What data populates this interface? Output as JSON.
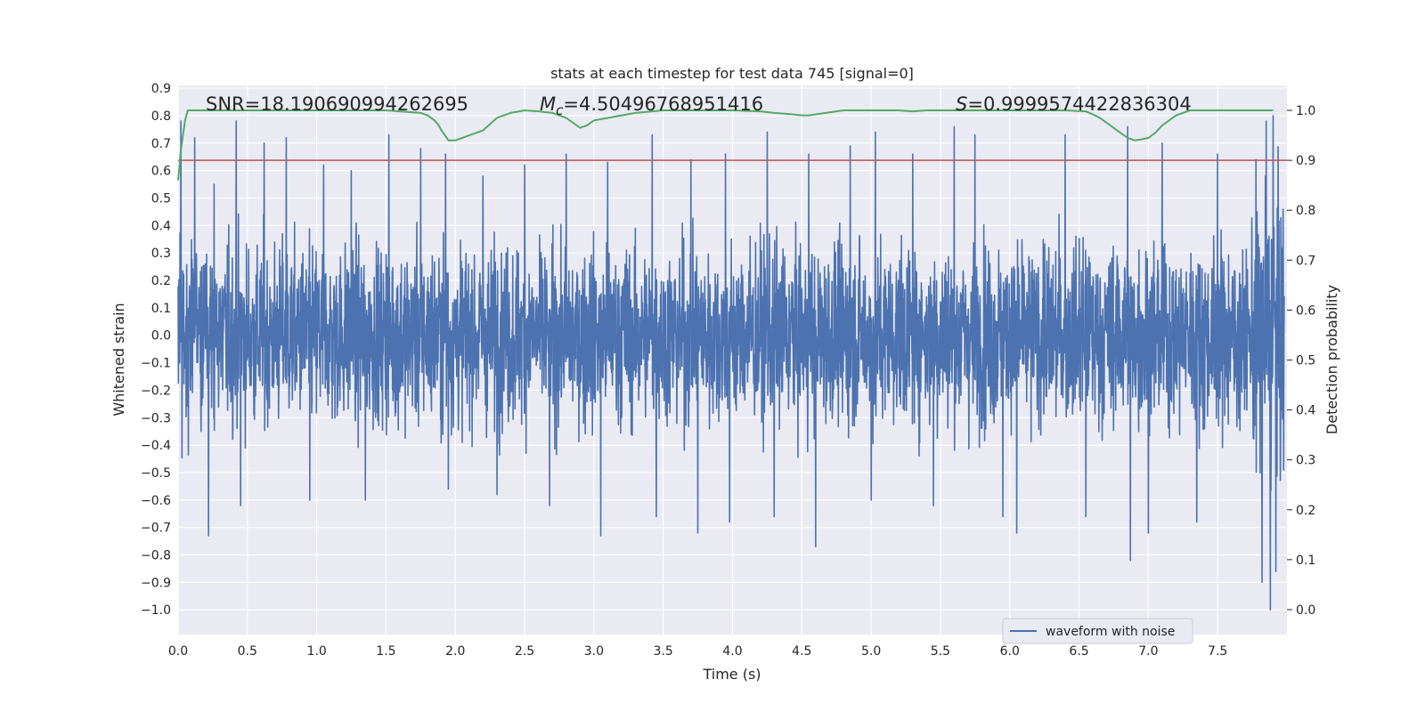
{
  "chart_data": {
    "type": "line",
    "title": "stats at each timestep for test data 745 [signal=0]",
    "xlabel": "Time (s)",
    "ylabel": "Whitened strain",
    "y2label": "Detection probability",
    "xlim": [
      0.0,
      8.0
    ],
    "ylim": [
      -1.09,
      0.91
    ],
    "y2lim": [
      -0.05,
      1.05
    ],
    "xticks": [
      "0.0",
      "0.5",
      "1.0",
      "1.5",
      "2.0",
      "2.5",
      "3.0",
      "3.5",
      "4.0",
      "4.5",
      "5.0",
      "5.5",
      "6.0",
      "6.5",
      "7.0",
      "7.5"
    ],
    "yticks": [
      "0.9",
      "0.8",
      "0.7",
      "0.6",
      "0.5",
      "0.4",
      "0.3",
      "0.2",
      "0.1",
      "0.0",
      "−0.1",
      "−0.2",
      "−0.3",
      "−0.4",
      "−0.5",
      "−0.6",
      "−0.7",
      "−0.8",
      "−0.9",
      "−1.0"
    ],
    "y2ticks": [
      "1.0",
      "0.9",
      "0.8",
      "0.7",
      "0.6",
      "0.5",
      "0.4",
      "0.3",
      "0.2",
      "0.1",
      "0.0"
    ],
    "grid": true,
    "legend_position": "lower-right",
    "annotations": {
      "snr": "SNR=18.190690994262695",
      "mc_symbol": "M",
      "mc_sub": "c",
      "mc_value": "=4.50496768951416",
      "s_symbol": "S",
      "s_value": "=0.9999574422836304"
    },
    "series": [
      {
        "name": "waveform with noise",
        "axis": "left",
        "color": "#4c72b0",
        "style": "dense noise, envelope approx ±0.4 with spikes to 0.8 / -1.0",
        "spikes_pos": [
          [
            0.02,
            0.78
          ],
          [
            0.12,
            0.72
          ],
          [
            0.26,
            0.55
          ],
          [
            0.42,
            0.78
          ],
          [
            0.62,
            0.7
          ],
          [
            0.78,
            0.72
          ],
          [
            1.05,
            0.62
          ],
          [
            1.25,
            0.6
          ],
          [
            1.52,
            0.73
          ],
          [
            1.75,
            0.68
          ],
          [
            1.93,
            0.66
          ],
          [
            2.2,
            0.58
          ],
          [
            2.5,
            0.62
          ],
          [
            2.8,
            0.66
          ],
          [
            3.1,
            0.63
          ],
          [
            3.42,
            0.73
          ],
          [
            3.7,
            0.64
          ],
          [
            3.95,
            0.66
          ],
          [
            4.25,
            0.74
          ],
          [
            4.55,
            0.66
          ],
          [
            4.85,
            0.69
          ],
          [
            5.03,
            0.74
          ],
          [
            5.3,
            0.66
          ],
          [
            5.6,
            0.76
          ],
          [
            5.75,
            0.73
          ],
          [
            6.05,
            0.68
          ],
          [
            6.4,
            0.73
          ],
          [
            6.85,
            0.76
          ],
          [
            7.1,
            0.7
          ],
          [
            7.5,
            0.66
          ],
          [
            7.85,
            0.78
          ],
          [
            7.9,
            0.8
          ]
        ],
        "spikes_neg": [
          [
            0.22,
            -0.73
          ],
          [
            0.45,
            -0.62
          ],
          [
            0.95,
            -0.6
          ],
          [
            1.35,
            -0.6
          ],
          [
            1.95,
            -0.56
          ],
          [
            2.3,
            -0.58
          ],
          [
            2.68,
            -0.62
          ],
          [
            3.05,
            -0.73
          ],
          [
            3.45,
            -0.66
          ],
          [
            3.75,
            -0.72
          ],
          [
            3.98,
            -0.68
          ],
          [
            4.3,
            -0.66
          ],
          [
            4.6,
            -0.77
          ],
          [
            5.0,
            -0.6
          ],
          [
            5.45,
            -0.62
          ],
          [
            5.95,
            -0.66
          ],
          [
            6.05,
            -0.72
          ],
          [
            6.55,
            -0.66
          ],
          [
            6.87,
            -0.82
          ],
          [
            7.0,
            -0.72
          ],
          [
            7.35,
            -0.68
          ],
          [
            7.82,
            -0.9
          ],
          [
            7.88,
            -1.0
          ],
          [
            7.92,
            -0.86
          ]
        ]
      },
      {
        "name": "detection probability",
        "axis": "right",
        "color": "#55a868",
        "x": [
          0.0,
          0.02,
          0.05,
          0.07,
          0.2,
          0.5,
          1.0,
          1.5,
          1.75,
          1.8,
          1.85,
          1.88,
          1.9,
          1.95,
          2.0,
          2.05,
          2.1,
          2.15,
          2.2,
          2.3,
          2.4,
          2.5,
          2.6,
          2.7,
          2.75,
          2.8,
          2.85,
          2.9,
          2.95,
          3.0,
          3.1,
          3.2,
          3.3,
          3.5,
          3.8,
          4.0,
          4.2,
          4.3,
          4.4,
          4.5,
          4.55,
          4.6,
          4.7,
          4.8,
          5.0,
          5.2,
          5.3,
          5.4,
          5.5,
          5.6,
          5.8,
          6.0,
          6.2,
          6.4,
          6.55,
          6.6,
          6.65,
          6.7,
          6.75,
          6.8,
          6.85,
          6.9,
          6.95,
          7.0,
          7.05,
          7.1,
          7.15,
          7.2,
          7.3,
          7.5,
          7.7,
          7.9
        ],
        "values": [
          0.86,
          0.92,
          0.98,
          1.0,
          1.0,
          1.0,
          1.0,
          1.0,
          0.995,
          0.99,
          0.98,
          0.97,
          0.96,
          0.94,
          0.94,
          0.945,
          0.95,
          0.955,
          0.96,
          0.985,
          0.995,
          1.0,
          0.998,
          0.995,
          0.99,
          0.985,
          0.975,
          0.965,
          0.97,
          0.98,
          0.985,
          0.99,
          0.995,
          1.0,
          1.0,
          1.0,
          0.998,
          0.995,
          0.993,
          0.99,
          0.99,
          0.992,
          0.996,
          1.0,
          1.0,
          1.0,
          0.998,
          1.0,
          1.0,
          1.0,
          1.0,
          1.0,
          1.0,
          1.0,
          0.998,
          0.992,
          0.985,
          0.975,
          0.965,
          0.955,
          0.945,
          0.94,
          0.942,
          0.945,
          0.955,
          0.97,
          0.98,
          0.99,
          1.0,
          1.0,
          1.0,
          1.0
        ]
      }
    ],
    "threshold": {
      "axis": "right",
      "value": 0.9,
      "color": "#c44e52"
    }
  }
}
